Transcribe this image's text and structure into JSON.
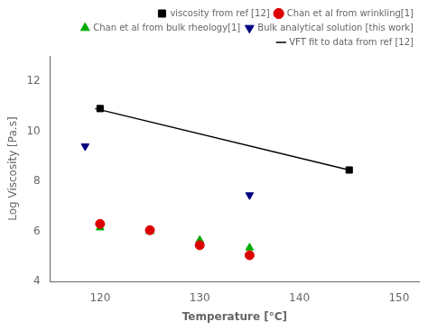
{
  "chart_data": {
    "type": "scatter",
    "xlabel": "Temperature [°C]",
    "ylabel": "Log Viscosity [Pa.s]",
    "xlim": [
      115,
      152
    ],
    "ylim": [
      4,
      13
    ],
    "xticks": [
      120,
      130,
      140,
      150
    ],
    "yticks": [
      4,
      6,
      8,
      10,
      12
    ],
    "grid": false,
    "legend": "upper right",
    "series": [
      {
        "name": "viscosity from ref [12]",
        "type": "scatter",
        "color": "#000000",
        "marker": "square",
        "x": [
          120,
          145
        ],
        "values": [
          10.9,
          8.45
        ]
      },
      {
        "name": "Chan et al from wrinkling[1]",
        "type": "scatter",
        "color": "#dd0000",
        "marker": "circle",
        "x": [
          120,
          125,
          130,
          135
        ],
        "values": [
          6.3,
          6.05,
          5.45,
          5.05
        ]
      },
      {
        "name": "Chan et al from bulk rheology[1]",
        "type": "scatter",
        "color": "#00aa00",
        "marker": "triangle-up",
        "x": [
          120,
          125,
          130,
          135
        ],
        "values": [
          6.15,
          6.0,
          5.65,
          5.35
        ]
      },
      {
        "name": "VFT fit to data from ref [12]",
        "type": "line",
        "color": "#000000",
        "line_style": "solid",
        "x": [
          119.5,
          145
        ],
        "values": [
          10.9,
          8.45
        ]
      },
      {
        "name": "Bulk analytical solution [this work]",
        "type": "scatter",
        "color": "#000080",
        "marker": "triangle-down",
        "x": [
          118.5,
          135
        ],
        "values": [
          9.4,
          7.45
        ]
      }
    ]
  }
}
